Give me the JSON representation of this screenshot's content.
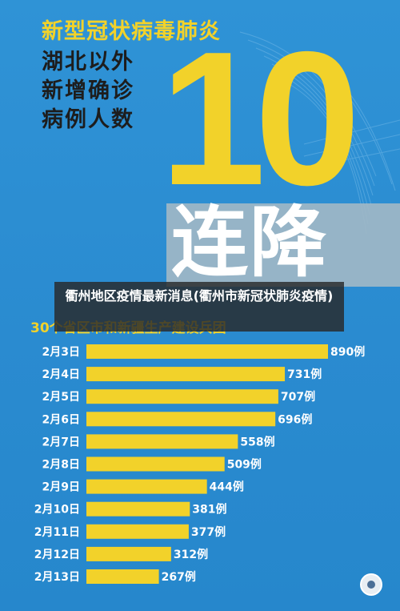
{
  "headline": {
    "line1": "新型冠状病毒肺炎",
    "line2": "湖北以外",
    "line3": "新增确诊",
    "line4": "病例人数"
  },
  "big_number": "10",
  "streak_label": "连降",
  "overlay_title": "衢州地区疫情最新消息(衢州市新冠状肺炎疫情)",
  "subtitle": "30个省区市和新疆生产建设兵团",
  "colors": {
    "background": "#2c8fd2",
    "accent": "#f2d22a",
    "bar": "#f2d22a",
    "text_dark": "#1d1d1d",
    "text_light": "#ffffff"
  },
  "icons": {
    "emblem": "agency-emblem-icon"
  },
  "chart_data": {
    "type": "bar",
    "orientation": "horizontal",
    "title": "",
    "xlabel": "",
    "ylabel": "",
    "categories": [
      "2月3日",
      "2月4日",
      "2月5日",
      "2月6日",
      "2月7日",
      "2月8日",
      "2月9日",
      "2月10日",
      "2月11日",
      "2月12日",
      "2月13日"
    ],
    "values": [
      890,
      731,
      707,
      696,
      558,
      509,
      444,
      381,
      377,
      312,
      267
    ],
    "value_labels": [
      "890例",
      "731例",
      "707例",
      "696例",
      "558例",
      "509例",
      "444例",
      "381例",
      "377例",
      "312例",
      "267例"
    ],
    "xlim": [
      0,
      890
    ],
    "grid": false,
    "legend": "none"
  }
}
